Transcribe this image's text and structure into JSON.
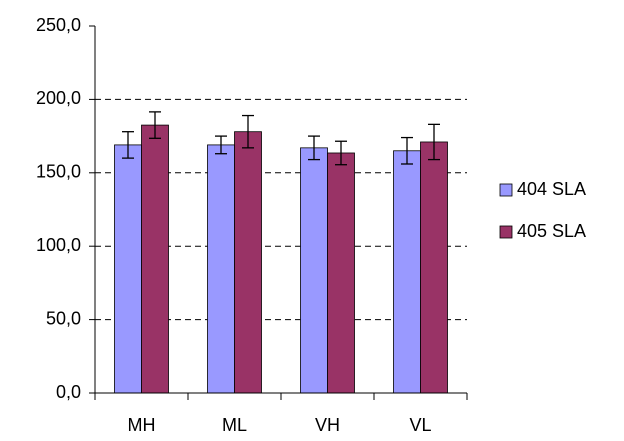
{
  "chart_data": {
    "type": "bar",
    "categories": [
      "MH",
      "ML",
      "VH",
      "VL"
    ],
    "series": [
      {
        "name": "404 SLA",
        "color": "#9999ff",
        "values": [
          169,
          169,
          167,
          165
        ],
        "errors": [
          9,
          6,
          8,
          9
        ]
      },
      {
        "name": "405 SLA",
        "color": "#993366",
        "values": [
          182.5,
          178,
          163.5,
          171
        ],
        "errors": [
          9,
          11,
          8,
          12
        ]
      }
    ],
    "ylim": [
      0,
      250
    ],
    "yticks": [
      {
        "value": 0,
        "label": "0,0"
      },
      {
        "value": 50,
        "label": "50,0"
      },
      {
        "value": 100,
        "label": "100,0"
      },
      {
        "value": 150,
        "label": "150,0"
      },
      {
        "value": 200,
        "label": "200,0"
      },
      {
        "value": 250,
        "label": "250,0"
      }
    ],
    "grid": true,
    "legend": "right"
  }
}
